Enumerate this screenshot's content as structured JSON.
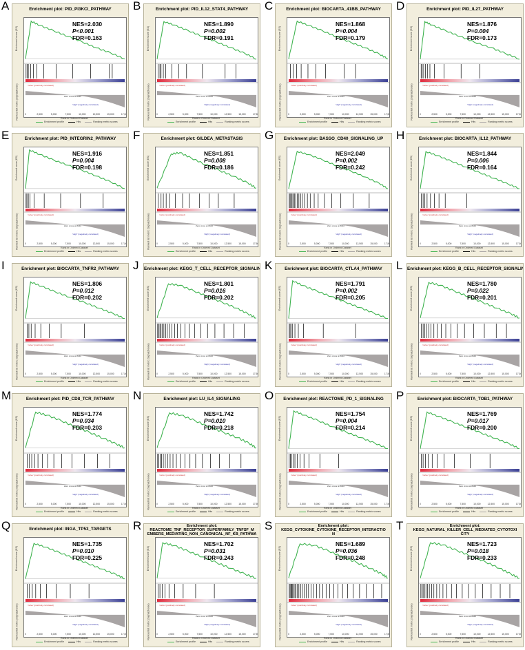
{
  "shared": {
    "es_axis_label": "Enrichment score (ES)",
    "rank_axis_label": "Ranked list metric (Signal2Noise)",
    "x_axis_label": "Rank in Ordered Dataset",
    "pos_label": "'naïve' (positively correlated)",
    "neg_label": "'High' (negatively correlated)",
    "zero_label": "Zero cross at 8040",
    "legend": [
      "Enrichment profile",
      "Hits",
      "Ranking metric scores"
    ],
    "x_ticks": [
      "0",
      "2,500",
      "5,000",
      "7,500",
      "10,000",
      "12,500",
      "15,000",
      "17,500"
    ],
    "colors": {
      "es_line": "#3fb34f",
      "hits": "#000000",
      "neg_fill": "#a8a4a4",
      "pos_color": "#e0293c",
      "neg_color": "#3a3f94",
      "card_bg": "#f2eedd"
    }
  },
  "chart_data": [
    {
      "type": "line",
      "panel": "A",
      "title": "Enrichment plot: PID_PI3KCI_PATHWAY",
      "nes": "NES=2.030",
      "p": "P<0.001",
      "fdr": "FDR=0.163",
      "x": [
        0,
        1000,
        2500,
        5000,
        7500,
        10000,
        12500,
        15000,
        17500
      ],
      "y": [
        0,
        0.62,
        0.55,
        0.46,
        0.37,
        0.28,
        0.18,
        0.1,
        0.0
      ],
      "ylim": [
        -0.05,
        0.65
      ],
      "hits": [
        100,
        300,
        500,
        900,
        1400,
        2000,
        3200,
        5400,
        8300,
        11500,
        14800,
        15300
      ]
    },
    {
      "type": "line",
      "panel": "B",
      "title": "Enrichment plot: PID_IL12_STAT4_PATHWAY",
      "nes": "NES=1.890",
      "p": "P=0.002",
      "fdr": "FDR=0.191",
      "x": [
        0,
        1200,
        3000,
        5500,
        8000,
        10500,
        13000,
        15500,
        17500
      ],
      "y": [
        0,
        0.66,
        0.6,
        0.5,
        0.4,
        0.3,
        0.2,
        0.1,
        0.0
      ],
      "ylim": [
        -0.05,
        0.7
      ],
      "hits": [
        200,
        500,
        700,
        1100,
        1500,
        2600,
        3800,
        5200,
        8000,
        12000,
        13900
      ]
    },
    {
      "type": "line",
      "panel": "C",
      "title": "Enrichment plot: BIOCARTA_41BB_PATHWAY",
      "nes": "NES=1.868",
      "p": "P=0.004",
      "fdr": "FDR=0.179",
      "x": [
        0,
        1500,
        3500,
        6000,
        8500,
        11000,
        13500,
        16000,
        17500
      ],
      "y": [
        0,
        0.62,
        0.55,
        0.46,
        0.36,
        0.27,
        0.18,
        0.08,
        0.0
      ],
      "ylim": [
        -0.05,
        0.65
      ],
      "hits": [
        300,
        800,
        1400,
        2200,
        3400,
        4800,
        6500,
        9800,
        11800
      ]
    },
    {
      "type": "line",
      "panel": "D",
      "title": "Enrichment plot: PID_IL27_PATHWAY",
      "nes": "NES=1.876",
      "p": "P=0.004",
      "fdr": "FDR=0.173",
      "x": [
        0,
        800,
        2000,
        4500,
        7000,
        9500,
        12500,
        15000,
        17500
      ],
      "y": [
        0,
        0.66,
        0.6,
        0.5,
        0.4,
        0.3,
        0.2,
        0.1,
        0.0
      ],
      "ylim": [
        -0.05,
        0.7
      ],
      "hits": [
        150,
        350,
        600,
        900,
        1300,
        1700,
        2500,
        4200,
        7200,
        10500
      ]
    },
    {
      "type": "line",
      "panel": "E",
      "title": "Enrichment plot: PID_INTEGRIN2_PATHWAY",
      "nes": "NES=1.916",
      "p": "P=0.004",
      "fdr": "FDR=0.198",
      "x": [
        0,
        700,
        2500,
        5000,
        7500,
        10000,
        12500,
        15000,
        17500
      ],
      "y": [
        0,
        0.68,
        0.6,
        0.5,
        0.41,
        0.32,
        0.22,
        0.12,
        0.0
      ],
      "ylim": [
        -0.05,
        0.7
      ],
      "hits": [
        100,
        250,
        500,
        800,
        1500,
        3300,
        6200,
        9700,
        13700
      ]
    },
    {
      "type": "line",
      "panel": "F",
      "title": "Enrichment plot: GILDEA_METASTASIS",
      "nes": "NES=1.851",
      "p": "P=0.008",
      "fdr": "FDR=0.186",
      "x": [
        0,
        2500,
        4000,
        6000,
        8500,
        11000,
        13500,
        16000,
        17500
      ],
      "y": [
        0,
        0.52,
        0.54,
        0.46,
        0.36,
        0.27,
        0.18,
        0.08,
        0.0
      ],
      "ylim": [
        -0.05,
        0.6
      ],
      "hits": [
        200,
        700,
        1100,
        1600,
        2200,
        3200,
        4500,
        5700,
        7500,
        9200,
        10800,
        13600
      ]
    },
    {
      "type": "line",
      "panel": "G",
      "title": "Enrichment plot: BASSO_CD40_SIGNALING_UP",
      "nes": "NES=2.049",
      "p": "P=0.002",
      "fdr": "FDR=0.242",
      "x": [
        0,
        1500,
        3500,
        6000,
        8500,
        11000,
        13500,
        16000,
        17500
      ],
      "y": [
        0,
        0.7,
        0.64,
        0.54,
        0.43,
        0.33,
        0.22,
        0.1,
        0.0
      ],
      "ylim": [
        -0.05,
        0.75
      ],
      "hits": [
        100,
        250,
        400,
        600,
        800,
        1000,
        1250,
        1500,
        1800,
        2100,
        2400,
        2800,
        3300,
        3800,
        4500,
        5200,
        6300,
        7600,
        9200,
        11400,
        14200
      ]
    },
    {
      "type": "line",
      "panel": "H",
      "title": "Enrichment plot: BIOCARTA_IL12_PATHWAY",
      "nes": "NES=1.844",
      "p": "P=0.006",
      "fdr": "FDR=0.164",
      "x": [
        0,
        1000,
        3000,
        5500,
        8000,
        10500,
        13000,
        15500,
        17500
      ],
      "y": [
        0,
        0.65,
        0.58,
        0.48,
        0.38,
        0.28,
        0.18,
        0.08,
        0.0
      ],
      "ylim": [
        -0.05,
        0.7
      ],
      "hits": [
        200,
        500,
        800,
        1200,
        1800,
        2500,
        3300,
        4400,
        8200
      ]
    },
    {
      "type": "line",
      "panel": "I",
      "title": "Enrichment plot: BIOCARTA_TNFR2_PATHWAY",
      "nes": "NES=1.806",
      "p": "P=0.012",
      "fdr": "FDR=0.202",
      "x": [
        0,
        900,
        2800,
        5200,
        7800,
        10500,
        13000,
        15500,
        17500
      ],
      "y": [
        0,
        0.6,
        0.53,
        0.44,
        0.35,
        0.26,
        0.17,
        0.08,
        0.0
      ],
      "ylim": [
        -0.05,
        0.65
      ],
      "hits": [
        300,
        600,
        1000,
        1700,
        2700,
        4200,
        6300,
        10400
      ]
    },
    {
      "type": "line",
      "panel": "J",
      "title": "Enrichment plot: KEGG_T_CELL_RECEPTOR_SIGNALING_PATHWAY",
      "nes": "NES=1.801",
      "p": "P=0.016",
      "fdr": "FDR=0.202",
      "x": [
        0,
        2000,
        4000,
        6500,
        9000,
        11500,
        14000,
        16000,
        17500
      ],
      "y": [
        0,
        0.48,
        0.46,
        0.38,
        0.3,
        0.22,
        0.14,
        0.06,
        0.0
      ],
      "ylim": [
        -0.05,
        0.55
      ],
      "hits": [
        100,
        300,
        500,
        700,
        900,
        1200,
        1500,
        1800,
        2200,
        2600,
        3100,
        3600,
        4200,
        4900,
        5700,
        6600,
        7700,
        8900,
        10200,
        11800,
        13500,
        15400
      ]
    },
    {
      "type": "line",
      "panel": "K",
      "title": "Enrichment plot: BIOCARTA_CTLA4_PATHWAY",
      "nes": "NES=1.791",
      "p": "P=0.002",
      "fdr": "FDR=0.205",
      "x": [
        0,
        700,
        2500,
        5000,
        7500,
        10000,
        12500,
        15000,
        17500
      ],
      "y": [
        0,
        0.62,
        0.54,
        0.45,
        0.36,
        0.27,
        0.18,
        0.09,
        0.0
      ],
      "ylim": [
        -0.05,
        0.65
      ],
      "hits": [
        100,
        250,
        450,
        700,
        1100,
        1700,
        2600,
        6100,
        11800
      ]
    },
    {
      "type": "line",
      "panel": "L",
      "title": "Enrichment plot: KEGG_B_CELL_RECEPTOR_SIGNALING_PATHWAY",
      "nes": "NES=1.780",
      "p": "P=0.022",
      "fdr": "FDR=0.201",
      "x": [
        0,
        1500,
        3500,
        6000,
        8500,
        11000,
        13500,
        16000,
        17500
      ],
      "y": [
        0,
        0.5,
        0.46,
        0.38,
        0.3,
        0.22,
        0.14,
        0.06,
        0.0
      ],
      "ylim": [
        -0.05,
        0.55
      ],
      "hits": [
        200,
        500,
        800,
        1100,
        1500,
        1900,
        2400,
        3000,
        3700,
        4500,
        5400,
        6500,
        7800,
        9400,
        11300,
        13400,
        15200
      ]
    },
    {
      "type": "line",
      "panel": "M",
      "title": "Enrichment plot: PID_CD8_TCR_PATHWAY",
      "nes": "NES=1.774",
      "p": "P=0.034",
      "fdr": "FDR=0.203",
      "x": [
        0,
        1800,
        3800,
        6300,
        8800,
        11300,
        13800,
        16000,
        17500
      ],
      "y": [
        0,
        0.46,
        0.42,
        0.35,
        0.27,
        0.2,
        0.12,
        0.05,
        0.0
      ],
      "ylim": [
        -0.05,
        0.5
      ],
      "hits": [
        300,
        700,
        1100,
        1600,
        2200,
        3000,
        3900,
        5000,
        6400,
        8200,
        10400,
        12700,
        14900
      ]
    },
    {
      "type": "line",
      "panel": "N",
      "title": "Enrichment plot: LU_IL4_SIGNALING",
      "nes": "NES=1.742",
      "p": "P=0.010",
      "fdr": "FDR=0.218",
      "x": [
        0,
        2200,
        4200,
        6700,
        9200,
        11700,
        14200,
        16200,
        17500
      ],
      "y": [
        0,
        0.45,
        0.42,
        0.35,
        0.27,
        0.2,
        0.13,
        0.06,
        0.0
      ],
      "ylim": [
        -0.05,
        0.5
      ],
      "hits": [
        100,
        300,
        550,
        800,
        1100,
        1450,
        1850,
        2300,
        2800,
        3400,
        4100,
        4900,
        5800,
        6800,
        8000,
        9400,
        11000,
        12800,
        14800
      ]
    },
    {
      "type": "line",
      "panel": "O",
      "title": "Enrichment plot: REACTOME_PD_1_SIGNALING",
      "nes": "NES=1.754",
      "p": "P=0.004",
      "fdr": "FDR=0.214",
      "x": [
        0,
        900,
        2700,
        5200,
        7700,
        10200,
        12700,
        15200,
        17500
      ],
      "y": [
        0,
        0.62,
        0.55,
        0.46,
        0.36,
        0.27,
        0.18,
        0.09,
        0.0
      ],
      "ylim": [
        -0.05,
        0.65
      ],
      "hits": [
        100,
        300,
        500,
        800,
        1100,
        1500,
        2000,
        2700,
        3600,
        5500,
        8800
      ]
    },
    {
      "type": "line",
      "panel": "P",
      "title": "Enrichment plot: BIOCARTA_TOB1_PATHWAY",
      "nes": "NES=1.769",
      "p": "P=0.017",
      "fdr": "FDR=0.200",
      "x": [
        0,
        1200,
        3200,
        5700,
        8200,
        10700,
        13200,
        15700,
        17500
      ],
      "y": [
        0,
        0.6,
        0.53,
        0.44,
        0.35,
        0.26,
        0.17,
        0.08,
        0.0
      ],
      "ylim": [
        -0.05,
        0.65
      ],
      "hits": [
        200,
        500,
        900,
        1400,
        2100,
        3000,
        4200,
        6000,
        8800,
        12300
      ]
    },
    {
      "type": "line",
      "panel": "Q",
      "title": "Enrichment plot: INGA_TP53_TARGETS",
      "nes": "NES=1.735",
      "p": "P=0.010",
      "fdr": "FDR=0.225",
      "x": [
        0,
        1500,
        3500,
        6000,
        8500,
        11000,
        13500,
        16000,
        17500
      ],
      "y": [
        0,
        0.58,
        0.52,
        0.43,
        0.34,
        0.25,
        0.16,
        0.07,
        0.0
      ],
      "ylim": [
        -0.05,
        0.65
      ],
      "hits": [
        300,
        700,
        1200,
        1800,
        2600,
        3700,
        5400,
        7900,
        11200
      ]
    },
    {
      "type": "line",
      "panel": "R",
      "title": "Enrichment plot: REACTOME_TNF_RECEPTOR_SUPERFAMILY_TNFSF_MEMBERS_MEDIATING_NON_CANONICAL_NF_KB_PATHWAY",
      "title_lines": [
        "Enrichment plot:",
        "REACTOME_TNF_RECEPTOR_SUPERFAMILY_TNFSF_M",
        "EMBERS_MEDIATING_NON_CANONICAL_NF_KB_PATHWA"
      ],
      "nes": "NES=1.702",
      "p": "P=0.031",
      "fdr": "FDR=0.243",
      "x": [
        0,
        1000,
        3000,
        5500,
        8000,
        10500,
        13000,
        15500,
        17500
      ],
      "y": [
        0,
        0.5,
        0.46,
        0.38,
        0.3,
        0.22,
        0.14,
        0.06,
        0.0
      ],
      "ylim": [
        -0.05,
        0.55
      ],
      "hits": [
        200,
        500,
        900,
        1400,
        2100,
        3100,
        4600,
        6800,
        10100
      ]
    },
    {
      "type": "line",
      "panel": "S",
      "title": "Enrichment plot: KEGG_CYTOKINE_CYTOKINE_RECEPTOR_INTERACTION",
      "title_lines": [
        "Enrichment plot:",
        "KEGG_CYTOKINE_CYTOKINE_RECEPTOR_INTERACTIO",
        "N"
      ],
      "nes": "NES=1.689",
      "p": "P=0.036",
      "fdr": "FDR=0.248",
      "x": [
        0,
        2000,
        4500,
        7000,
        9500,
        12000,
        14500,
        16500,
        17500
      ],
      "y": [
        0,
        0.44,
        0.42,
        0.35,
        0.27,
        0.2,
        0.12,
        0.05,
        0.0
      ],
      "ylim": [
        -0.05,
        0.5
      ],
      "hits": [
        100,
        250,
        400,
        550,
        700,
        900,
        1100,
        1300,
        1550,
        1800,
        2100,
        2400,
        2750,
        3100,
        3500,
        3950,
        4400,
        4900,
        5450,
        6000,
        6600,
        7250,
        7950,
        8700,
        9500,
        10400,
        11400,
        12500,
        13700,
        15000,
        16400
      ]
    },
    {
      "type": "line",
      "panel": "T",
      "title": "Enrichment plot: KEGG_NATURAL_KILLER_CELL_MEDIATED_CYTOTOXICITY",
      "title_lines": [
        "Enrichment plot:",
        "KEGG_NATURAL_KILLER_CELL_MEDIATED_CYTOTOXI",
        "CITY"
      ],
      "nes": "NES=1.723",
      "p": "P=0.018",
      "fdr": "FDR=0.233",
      "x": [
        0,
        1800,
        4000,
        6500,
        9000,
        11500,
        14000,
        16000,
        17500
      ],
      "y": [
        0,
        0.5,
        0.47,
        0.39,
        0.31,
        0.23,
        0.14,
        0.06,
        0.0
      ],
      "ylim": [
        -0.05,
        0.55
      ],
      "hits": [
        100,
        300,
        500,
        750,
        1000,
        1300,
        1600,
        2000,
        2400,
        2900,
        3400,
        4000,
        4700,
        5500,
        6400,
        7400,
        8500,
        9700,
        11000,
        12500,
        14100,
        15800
      ]
    }
  ]
}
